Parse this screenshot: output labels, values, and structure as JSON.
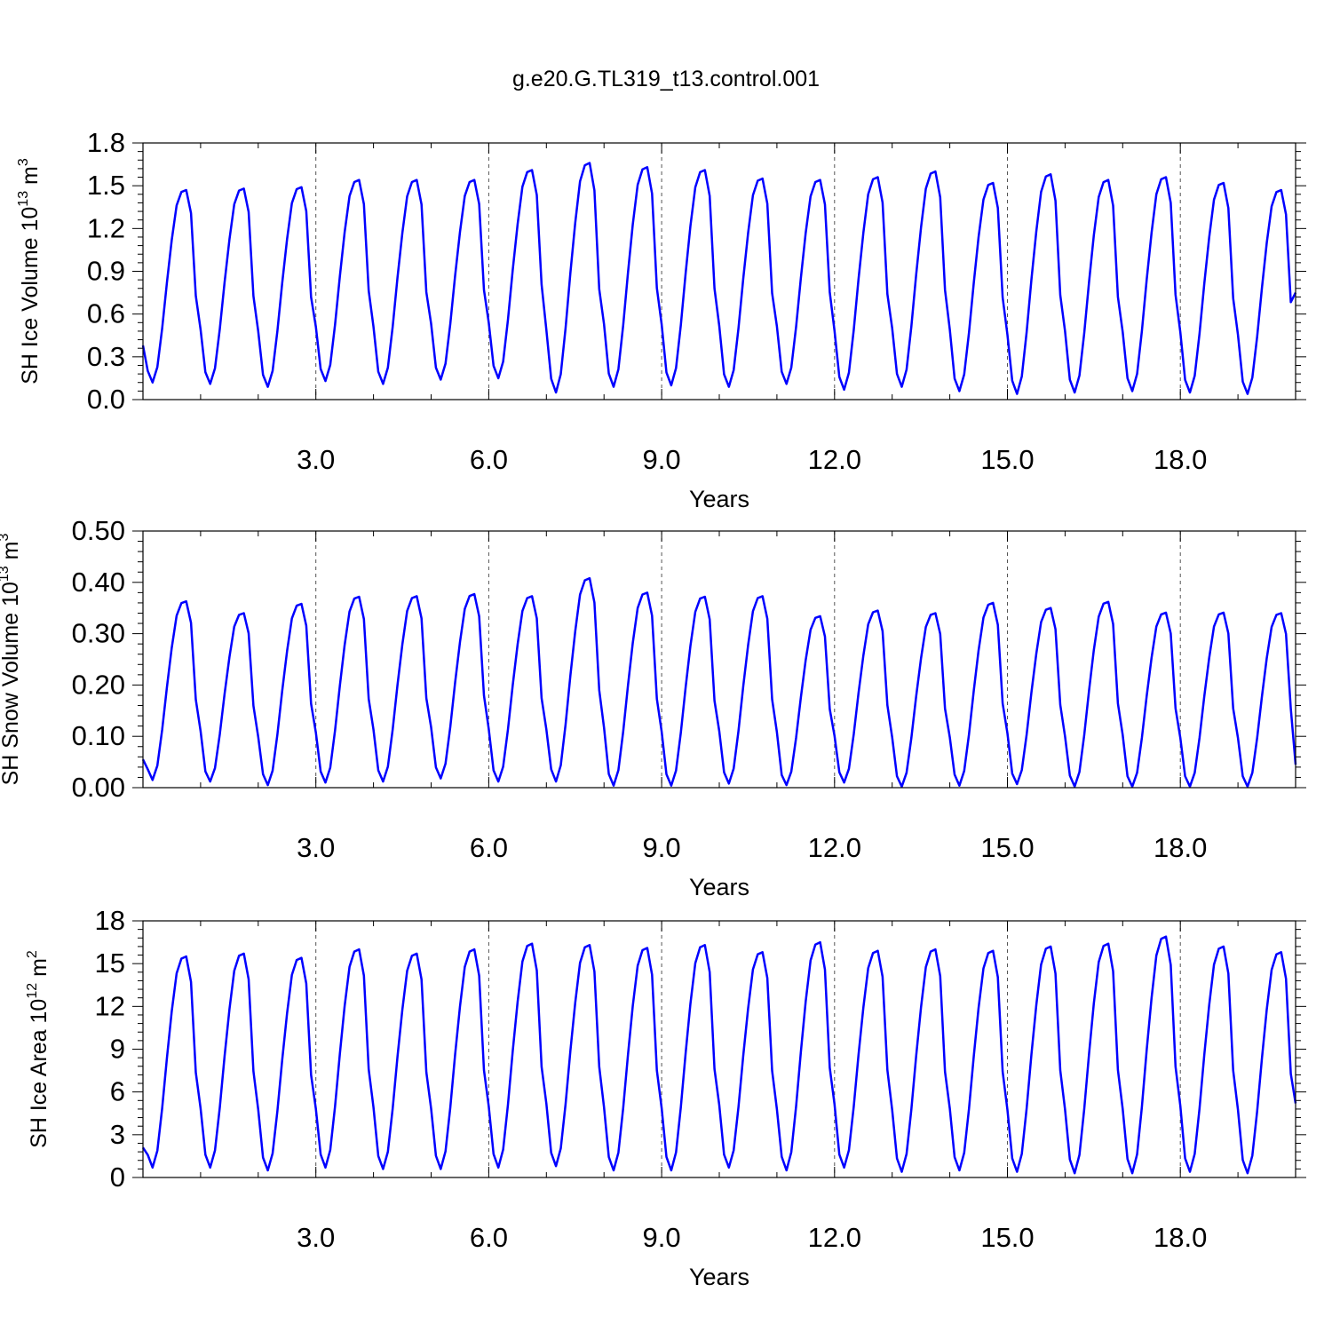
{
  "title": "g.e20.G.TL319_t13.control.001",
  "colors": {
    "line": "#0000ff",
    "frame": "#000000",
    "grid": "#555555"
  },
  "chart_data": [
    {
      "type": "line",
      "ylabel_main": "SH Ice Volume 10",
      "ylabel_sup": "13",
      "ylabel_unit": " m",
      "ylabel_unit_sup": "3",
      "xlabel": "Years",
      "xlim": [
        0.0,
        20.0
      ],
      "ylim": [
        0.0,
        1.8
      ],
      "yticks": [
        0.0,
        0.3,
        0.6,
        0.9,
        1.2,
        1.5,
        1.8
      ],
      "yticklabels": [
        "0.0",
        "0.3",
        "0.6",
        "0.9",
        "1.2",
        "1.5",
        "1.8"
      ],
      "xticks": [
        3,
        6,
        9,
        12,
        15,
        18
      ],
      "xticklabels": [
        "3.0",
        "6.0",
        "9.0",
        "12.0",
        "15.0",
        "18.0"
      ],
      "grid_x_dashed": true,
      "min": [
        0.12,
        0.11,
        0.09,
        0.13,
        0.11,
        0.14,
        0.15,
        0.05,
        0.09,
        0.1,
        0.09,
        0.11,
        0.07,
        0.09,
        0.06,
        0.04,
        0.05,
        0.06,
        0.05,
        0.04
      ],
      "max": [
        1.47,
        1.48,
        1.49,
        1.54,
        1.54,
        1.54,
        1.61,
        1.66,
        1.63,
        1.61,
        1.55,
        1.54,
        1.56,
        1.6,
        1.52,
        1.58,
        1.54,
        1.56,
        1.52,
        1.47
      ],
      "start": 0.38,
      "end": 0.75
    },
    {
      "type": "line",
      "ylabel_main": "SH Snow Volume 10",
      "ylabel_sup": "13",
      "ylabel_unit": " m",
      "ylabel_unit_sup": "3",
      "xlabel": "Years",
      "xlim": [
        0.0,
        20.0
      ],
      "ylim": [
        0.0,
        0.5
      ],
      "yticks": [
        0.0,
        0.1,
        0.2,
        0.3,
        0.4,
        0.5
      ],
      "yticklabels": [
        "0.00",
        "0.10",
        "0.20",
        "0.30",
        "0.40",
        "0.50"
      ],
      "xticks": [
        3,
        6,
        9,
        12,
        15,
        18
      ],
      "xticklabels": [
        "3.0",
        "6.0",
        "9.0",
        "12.0",
        "15.0",
        "18.0"
      ],
      "grid_x_dashed": true,
      "min": [
        0.015,
        0.012,
        0.005,
        0.01,
        0.012,
        0.018,
        0.012,
        0.012,
        0.004,
        0.004,
        0.008,
        0.005,
        0.01,
        0.002,
        0.004,
        0.007,
        0.002,
        0.002,
        0.002,
        0.002
      ],
      "max": [
        0.363,
        0.34,
        0.358,
        0.372,
        0.373,
        0.377,
        0.373,
        0.408,
        0.38,
        0.372,
        0.373,
        0.334,
        0.345,
        0.34,
        0.36,
        0.35,
        0.362,
        0.341,
        0.341,
        0.34
      ],
      "start": 0.055,
      "end": 0.045
    },
    {
      "type": "line",
      "ylabel_main": "SH Ice Area 10",
      "ylabel_sup": "12",
      "ylabel_unit": " m",
      "ylabel_unit_sup": "2",
      "xlabel": "Years",
      "xlim": [
        0.0,
        20.0
      ],
      "ylim": [
        0,
        18
      ],
      "yticks": [
        0,
        3,
        6,
        9,
        12,
        15,
        18
      ],
      "yticklabels": [
        "0",
        "3",
        "6",
        "9",
        "12",
        "15",
        "18"
      ],
      "xticks": [
        3,
        6,
        9,
        12,
        15,
        18
      ],
      "xticklabels": [
        "3.0",
        "6.0",
        "9.0",
        "12.0",
        "15.0",
        "18.0"
      ],
      "grid_x_dashed": true,
      "min": [
        0.7,
        0.7,
        0.5,
        0.7,
        0.6,
        0.6,
        0.7,
        0.8,
        0.5,
        0.5,
        0.7,
        0.5,
        0.7,
        0.4,
        0.5,
        0.4,
        0.3,
        0.3,
        0.4,
        0.3
      ],
      "max": [
        15.5,
        15.7,
        15.4,
        16.0,
        15.7,
        16.0,
        16.4,
        16.3,
        16.1,
        16.3,
        15.8,
        16.5,
        15.9,
        16.0,
        15.9,
        16.2,
        16.4,
        16.9,
        16.2,
        15.8
      ],
      "start": 2.1,
      "end": 5.2
    }
  ]
}
